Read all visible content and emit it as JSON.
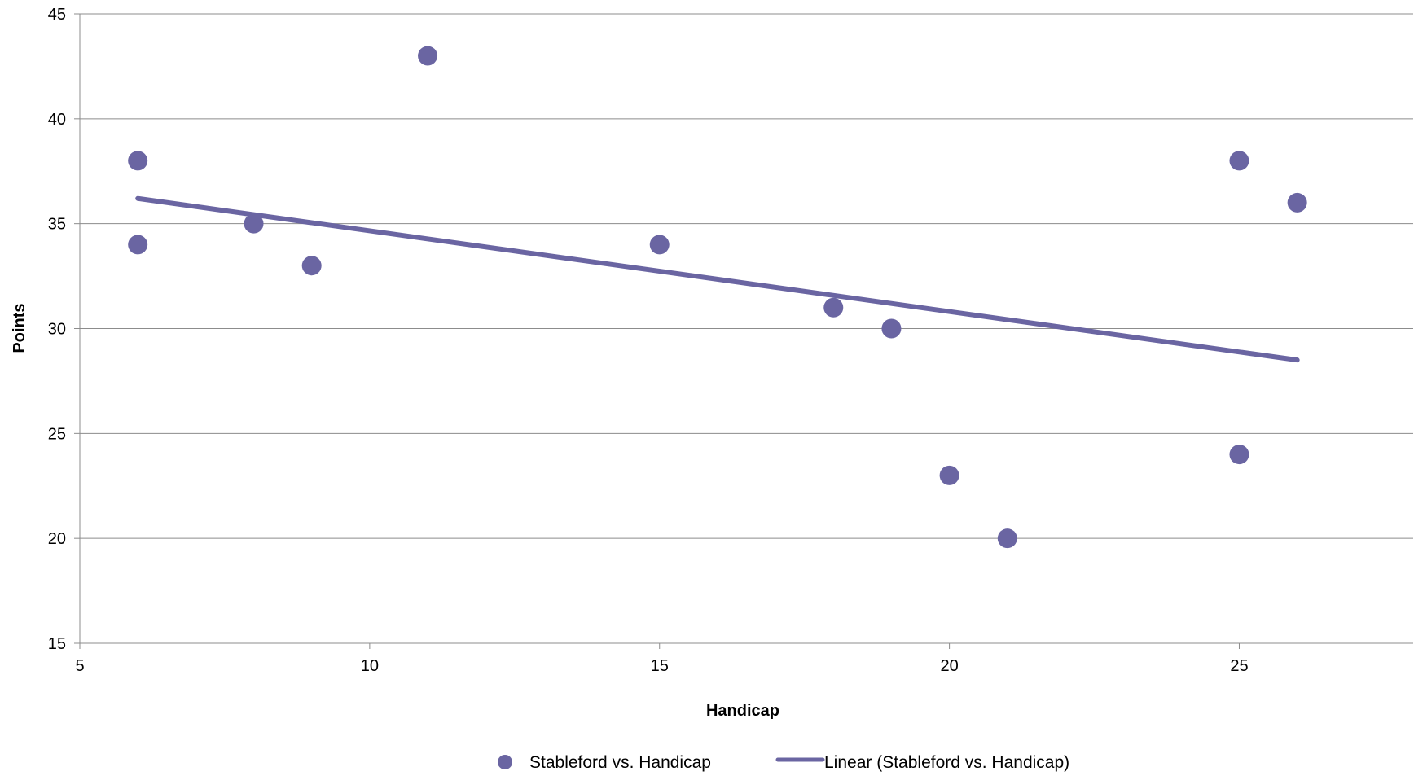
{
  "chart_data": {
    "type": "scatter",
    "title": "",
    "xlabel": "Handicap",
    "ylabel": "Points",
    "xlim": [
      5,
      28
    ],
    "ylim": [
      15,
      45
    ],
    "x_ticks": [
      5,
      10,
      15,
      20,
      25
    ],
    "y_ticks": [
      15,
      20,
      25,
      30,
      35,
      40,
      45
    ],
    "grid": "horizontal",
    "legend_position": "bottom",
    "series": [
      {
        "name": "Stableford vs. Handicap",
        "color": "#6a65a2",
        "points": [
          {
            "x": 6,
            "y": 38
          },
          {
            "x": 6,
            "y": 34
          },
          {
            "x": 8,
            "y": 35
          },
          {
            "x": 9,
            "y": 33
          },
          {
            "x": 11,
            "y": 43
          },
          {
            "x": 15,
            "y": 34
          },
          {
            "x": 18,
            "y": 31
          },
          {
            "x": 19,
            "y": 30
          },
          {
            "x": 20,
            "y": 23
          },
          {
            "x": 21,
            "y": 20
          },
          {
            "x": 25,
            "y": 38
          },
          {
            "x": 25,
            "y": 24
          },
          {
            "x": 26,
            "y": 36
          }
        ]
      }
    ],
    "trendline": {
      "name": "Linear (Stableford vs. Handicap)",
      "type": "linear",
      "color": "#6a65a2",
      "points": [
        {
          "x": 6,
          "y": 36.2
        },
        {
          "x": 26,
          "y": 28.5
        }
      ]
    }
  }
}
